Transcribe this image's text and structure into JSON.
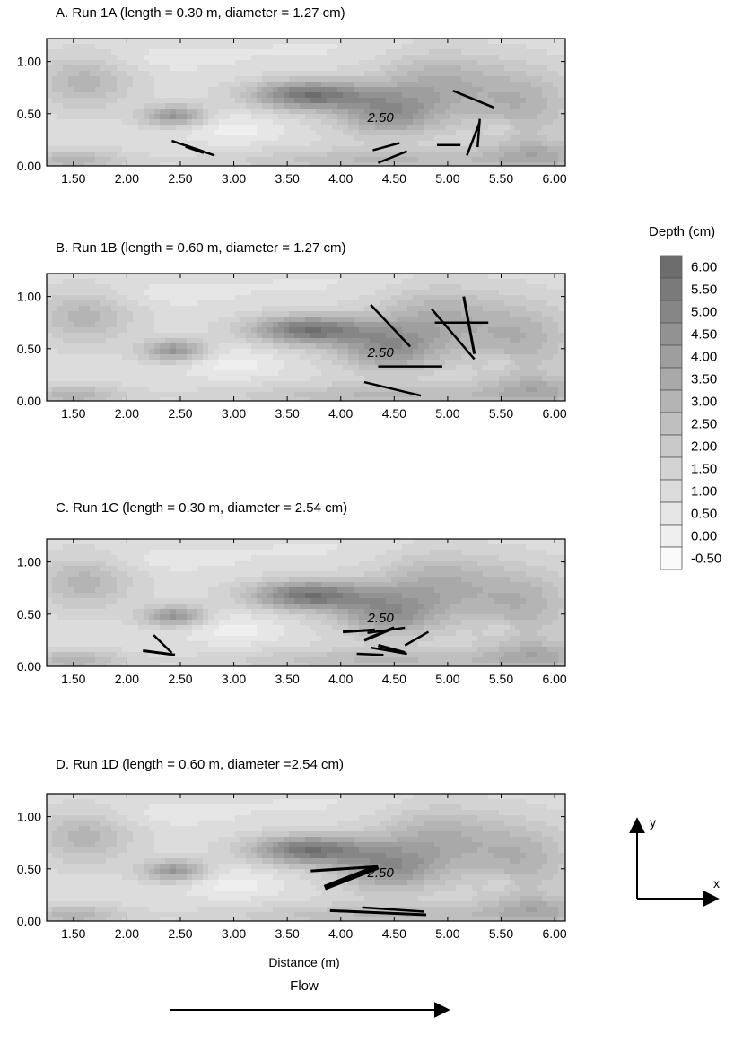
{
  "chart_data": {
    "type": "contour",
    "xlabel": "Distance (m)",
    "colorbar": {
      "title": "Depth (cm)",
      "levels": [
        "6.00",
        "5.50",
        "5.00",
        "4.50",
        "4.00",
        "3.50",
        "3.00",
        "2.50",
        "2.00",
        "1.50",
        "1.00",
        "0.50",
        "0.00",
        "-0.50"
      ],
      "colors": [
        "#6d6d6d",
        "#7a7a7a",
        "#868686",
        "#929292",
        "#9e9e9e",
        "#a9a9a9",
        "#b4b4b4",
        "#bfbfbf",
        "#c9c9c9",
        "#d3d3d3",
        "#dcdcdc",
        "#e6e6e6",
        "#efefef",
        "#fafafa"
      ]
    },
    "x_ticks": [
      "1.50",
      "2.00",
      "2.50",
      "3.00",
      "3.50",
      "4.00",
      "4.50",
      "5.00",
      "5.50",
      "6.00"
    ],
    "y_ticks": [
      "0.00",
      "0.50",
      "1.00"
    ],
    "xlim": [
      1.25,
      6.1
    ],
    "ylim": [
      0,
      1.22
    ],
    "contour_label": "2.50",
    "panels": [
      {
        "title": "A. Run 1A (length = 0.30 m, diameter = 1.27 cm)",
        "pieces": [
          {
            "x1": 2.42,
            "y1": 0.24,
            "x2": 2.82,
            "y2": 0.1,
            "w": 2.5
          },
          {
            "x1": 2.55,
            "y1": 0.19,
            "x2": 2.72,
            "y2": 0.13,
            "w": 4
          },
          {
            "x1": 4.3,
            "y1": 0.15,
            "x2": 4.55,
            "y2": 0.22,
            "w": 2.5
          },
          {
            "x1": 4.35,
            "y1": 0.03,
            "x2": 4.62,
            "y2": 0.14,
            "w": 2.5
          },
          {
            "x1": 4.9,
            "y1": 0.2,
            "x2": 5.12,
            "y2": 0.2,
            "w": 2.5
          },
          {
            "x1": 5.18,
            "y1": 0.1,
            "x2": 5.3,
            "y2": 0.42,
            "w": 2.5
          },
          {
            "x1": 5.28,
            "y1": 0.18,
            "x2": 5.3,
            "y2": 0.45,
            "w": 2.5
          },
          {
            "x1": 5.05,
            "y1": 0.72,
            "x2": 5.43,
            "y2": 0.56,
            "w": 2.5
          }
        ]
      },
      {
        "title": "B. Run 1B (length = 0.60 m, diameter = 1.27 cm)",
        "pieces": [
          {
            "x1": 4.28,
            "y1": 0.92,
            "x2": 4.65,
            "y2": 0.52,
            "w": 2.5
          },
          {
            "x1": 4.22,
            "y1": 0.18,
            "x2": 4.75,
            "y2": 0.05,
            "w": 2.5
          },
          {
            "x1": 4.35,
            "y1": 0.33,
            "x2": 4.95,
            "y2": 0.33,
            "w": 2.5
          },
          {
            "x1": 4.85,
            "y1": 0.88,
            "x2": 5.25,
            "y2": 0.4,
            "w": 2.5
          },
          {
            "x1": 5.15,
            "y1": 1.0,
            "x2": 5.25,
            "y2": 0.45,
            "w": 3
          },
          {
            "x1": 4.88,
            "y1": 0.75,
            "x2": 5.38,
            "y2": 0.75,
            "w": 2.5
          }
        ]
      },
      {
        "title": "C. Run 1C (length = 0.30 m, diameter = 2.54 cm)",
        "pieces": [
          {
            "x1": 2.15,
            "y1": 0.15,
            "x2": 2.45,
            "y2": 0.11,
            "w": 3
          },
          {
            "x1": 2.25,
            "y1": 0.3,
            "x2": 2.42,
            "y2": 0.13,
            "w": 2.5
          },
          {
            "x1": 4.02,
            "y1": 0.33,
            "x2": 4.32,
            "y2": 0.35,
            "w": 3
          },
          {
            "x1": 4.22,
            "y1": 0.25,
            "x2": 4.5,
            "y2": 0.37,
            "w": 3.5
          },
          {
            "x1": 4.25,
            "y1": 0.32,
            "x2": 4.6,
            "y2": 0.37,
            "w": 2.5
          },
          {
            "x1": 4.35,
            "y1": 0.2,
            "x2": 4.6,
            "y2": 0.13,
            "w": 3.5
          },
          {
            "x1": 4.28,
            "y1": 0.18,
            "x2": 4.62,
            "y2": 0.12,
            "w": 2.5
          },
          {
            "x1": 4.6,
            "y1": 0.2,
            "x2": 4.82,
            "y2": 0.33,
            "w": 2.5
          },
          {
            "x1": 4.15,
            "y1": 0.12,
            "x2": 4.4,
            "y2": 0.11,
            "w": 2.5
          }
        ]
      },
      {
        "title": "D. Run 1D (length = 0.60 m, diameter =2.54 cm)",
        "pieces": [
          {
            "x1": 3.72,
            "y1": 0.48,
            "x2": 4.32,
            "y2": 0.52,
            "w": 3
          },
          {
            "x1": 3.85,
            "y1": 0.32,
            "x2": 4.35,
            "y2": 0.52,
            "w": 6
          },
          {
            "x1": 3.9,
            "y1": 0.1,
            "x2": 4.8,
            "y2": 0.06,
            "w": 3
          },
          {
            "x1": 4.2,
            "y1": 0.13,
            "x2": 4.78,
            "y2": 0.09,
            "w": 2.5
          }
        ]
      }
    ]
  },
  "axes_labels": {
    "y": "y",
    "x": "x"
  },
  "flow": {
    "label": "Flow"
  }
}
